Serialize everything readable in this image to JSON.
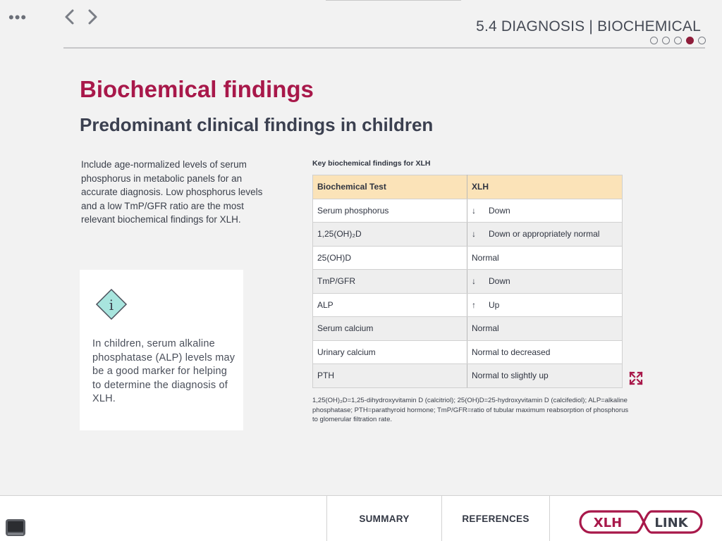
{
  "header": {
    "section_title": "5.4 DIAGNOSIS | BIOCHEMICAL",
    "menu_label": "•••",
    "progress": {
      "total": 5,
      "current": 4
    }
  },
  "main": {
    "title": "Biochemical findings",
    "subtitle": "Predominant clinical findings in children",
    "intro": "Include age-normalized levels of serum phosphorus in metabolic panels for an accurate diagnosis. Low phosphorus levels and a low TmP/GFR ratio are the most relevant biochemical findings for XLH.",
    "info_card": {
      "icon": "info-icon",
      "text": "In children, serum alkaline phosphatase (ALP) levels may be a good marker for helping to determine the diagnosis of XLH."
    }
  },
  "table": {
    "caption": "Key biochemical findings for XLH",
    "headers": [
      "Biochemical Test",
      "XLH"
    ],
    "rows": [
      {
        "test": "Serum phosphorus",
        "arrow": "↓",
        "result": "Down"
      },
      {
        "test": "1,25(OH)₂D",
        "arrow": "↓",
        "result": "Down or appropriately normal"
      },
      {
        "test": "25(OH)D",
        "arrow": "",
        "result": "Normal"
      },
      {
        "test": "TmP/GFR",
        "arrow": "↓",
        "result": "Down"
      },
      {
        "test": "ALP",
        "arrow": "↑",
        "result": "Up"
      },
      {
        "test": "Serum calcium",
        "arrow": "",
        "result": "Normal"
      },
      {
        "test": "Urinary calcium",
        "arrow": "",
        "result": "Normal to decreased"
      },
      {
        "test": "PTH",
        "arrow": "",
        "result": "Normal to slightly up"
      }
    ],
    "footnote": "1,25(OH)₂D=1,25-dihydroxyvitamin D (calcitriol); 25(OH)D=25-hydroxyvitamin D (calcifediol); ALP=alkaline phosphatase; PTH=parathyroid hormone; TmP/GFR=ratio of tubular maximum reabsorption of phosphorus to glomerular filtration rate."
  },
  "footer": {
    "summary_label": "SUMMARY",
    "references_label": "REFERENCES",
    "logo_left": "XLH",
    "logo_right": "LINK"
  },
  "colors": {
    "brand": "#a8184a",
    "header_row": "#fbe3b8",
    "info_icon_fill": "#a8e5de"
  }
}
